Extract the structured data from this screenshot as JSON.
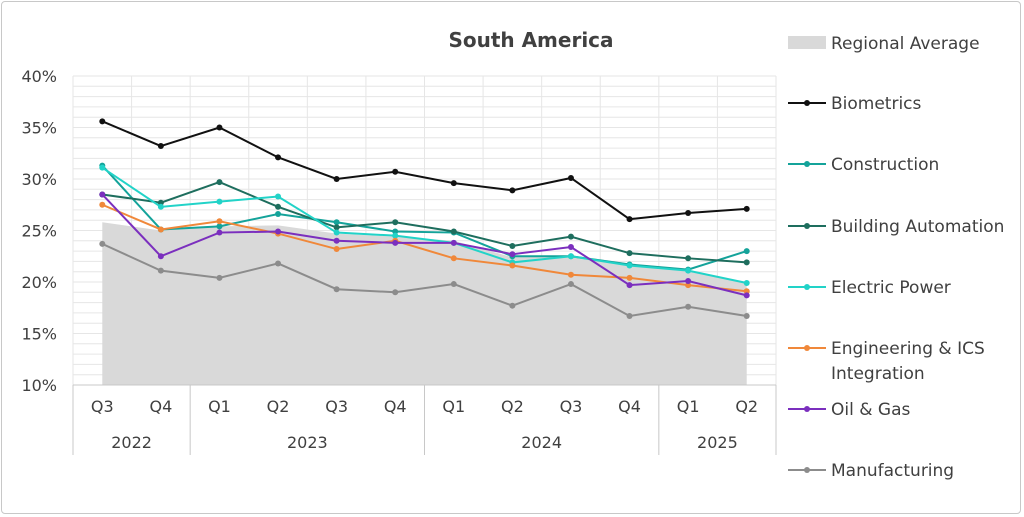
{
  "chart_data": {
    "type": "line",
    "title": "South America",
    "ylim": [
      10,
      40
    ],
    "ytick_labels": [
      "10%",
      "15%",
      "20%",
      "25%",
      "30%",
      "35%",
      "40%"
    ],
    "categories": [
      "Q3",
      "Q4",
      "Q1",
      "Q2",
      "Q3",
      "Q4",
      "Q1",
      "Q2",
      "Q3",
      "Q4",
      "Q1",
      "Q2"
    ],
    "year_groups": [
      {
        "label": "2022",
        "start": 0,
        "end": 1
      },
      {
        "label": "2023",
        "start": 2,
        "end": 5
      },
      {
        "label": "2024",
        "start": 6,
        "end": 9
      },
      {
        "label": "2025",
        "start": 10,
        "end": 11
      }
    ],
    "area": {
      "name": "Regional Average",
      "color": "#d9d9d9",
      "values": [
        25.8,
        25.0,
        25.4,
        25.5,
        24.7,
        24.4,
        24.0,
        22.4,
        22.6,
        21.8,
        21.0,
        20.0
      ]
    },
    "series": [
      {
        "name": "Biometrics",
        "color": "#111111",
        "values": [
          35.6,
          33.2,
          35.0,
          32.1,
          30.0,
          30.7,
          29.6,
          28.9,
          30.1,
          26.1,
          26.7,
          27.1
        ]
      },
      {
        "name": "Construction",
        "color": "#14a39a",
        "values": [
          31.3,
          25.1,
          25.4,
          26.6,
          25.8,
          24.9,
          24.8,
          22.5,
          22.5,
          21.7,
          21.2,
          23.0
        ]
      },
      {
        "name": "Building Automation",
        "color": "#1e6e5e",
        "values": [
          28.5,
          27.7,
          29.7,
          27.3,
          25.3,
          25.8,
          24.9,
          23.5,
          24.4,
          22.8,
          22.3,
          21.9
        ]
      },
      {
        "name": "Electric Power",
        "color": "#22d3c8",
        "values": [
          31.1,
          27.3,
          27.8,
          28.3,
          24.8,
          24.5,
          23.8,
          21.9,
          22.5,
          21.6,
          21.1,
          19.9
        ]
      },
      {
        "name": "Engineering & ICS Integration",
        "color": "#f0883a",
        "values": [
          27.5,
          25.1,
          25.9,
          24.7,
          23.2,
          24.0,
          22.3,
          21.6,
          20.7,
          20.4,
          19.7,
          19.1
        ]
      },
      {
        "name": "Oil & Gas",
        "color": "#7b2fbe",
        "values": [
          28.5,
          22.5,
          24.8,
          24.9,
          24.0,
          23.8,
          23.8,
          22.7,
          23.4,
          19.7,
          20.1,
          18.7
        ]
      },
      {
        "name": "Manufacturing",
        "color": "#8c8c8c",
        "values": [
          23.7,
          21.1,
          20.4,
          21.8,
          19.3,
          19.0,
          19.8,
          17.7,
          19.8,
          16.7,
          17.6,
          16.7
        ]
      }
    ],
    "legend_position": "right",
    "grid": true
  }
}
